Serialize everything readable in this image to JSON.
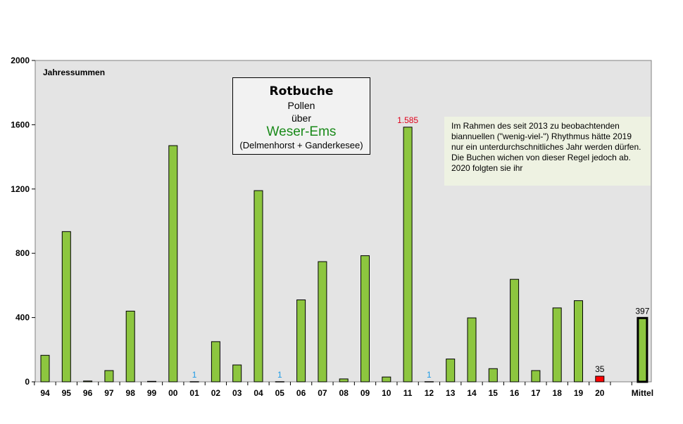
{
  "chart_data": {
    "type": "bar",
    "title": "Rotbuche",
    "subtitle_lines": [
      "Pollen",
      "über"
    ],
    "region": "Weser-Ems",
    "region_detail": "(Delmenhorst + Ganderkesee)",
    "panel_label": "Jahressummen",
    "note": "Im Rahmen des seit 2013 zu beobachtenden biannuellen (\"wenig-viel-\") Rhythmus hätte 2019 nur ein unterdurchschnitliches Jahr werden dürfen. Die Buchen wichen von dieser Regel jedoch ab. 2020 folgten sie ihr",
    "categories": [
      "94",
      "95",
      "96",
      "97",
      "98",
      "99",
      "00",
      "01",
      "02",
      "03",
      "04",
      "05",
      "06",
      "07",
      "08",
      "09",
      "10",
      "11",
      "12",
      "13",
      "14",
      "15",
      "16",
      "17",
      "18",
      "19",
      "20",
      "",
      "Mittel"
    ],
    "values": [
      165,
      935,
      5,
      70,
      440,
      3,
      1470,
      1,
      250,
      105,
      1190,
      1,
      510,
      748,
      18,
      785,
      30,
      1585,
      1,
      142,
      398,
      82,
      638,
      70,
      460,
      505,
      35,
      null,
      397
    ],
    "data_labels": {
      "01": "1",
      "05": "1",
      "11": "1.585",
      "12": "1",
      "20": "35",
      "Mittel": "397"
    },
    "ylim": [
      0,
      2000
    ],
    "yticks": [
      0,
      400,
      800,
      1200,
      1600,
      2000
    ],
    "colors": {
      "bar": "#8dc63f",
      "highlight": "#ff0000",
      "plot_bg": "#e4e4e4",
      "label_blue": "#1e9be6",
      "label_red": "#e0001b"
    },
    "highlight_category": "20",
    "mean_category": "Mittel"
  }
}
